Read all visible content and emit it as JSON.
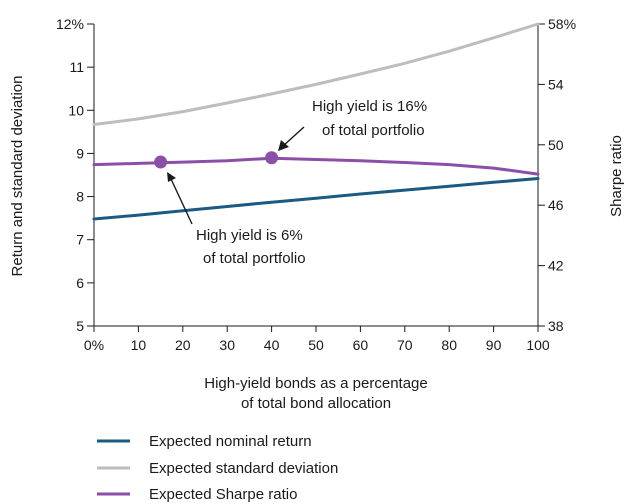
{
  "chart_data": {
    "type": "line",
    "x": [
      0,
      10,
      20,
      30,
      40,
      50,
      60,
      70,
      80,
      90,
      100
    ],
    "x_tick_labels": [
      "0%",
      "10",
      "20",
      "30",
      "40",
      "50",
      "60",
      "70",
      "80",
      "90",
      "100"
    ],
    "xlim": [
      0,
      100
    ],
    "xlabel_lines": [
      "High-yield bonds as a percentage",
      "of total bond allocation"
    ],
    "ylabel_left": "Return and standard deviation",
    "ylim_left": [
      5,
      12
    ],
    "y_left_tick_labels": [
      "5",
      "6",
      "7",
      "8",
      "9",
      "10",
      "11",
      "12%"
    ],
    "ylabel_right": "Sharpe ratio",
    "ylim_right": [
      38,
      58
    ],
    "y_right_tick_labels": [
      "38",
      "42",
      "46",
      "50",
      "54",
      "58%"
    ],
    "grid": false,
    "series": [
      {
        "name": "Expected nominal return",
        "axis": "left",
        "color": "#1b5a83",
        "values": [
          7.48,
          7.57,
          7.67,
          7.77,
          7.87,
          7.96,
          8.06,
          8.15,
          8.24,
          8.33,
          8.42
        ]
      },
      {
        "name": "Expected standard deviation",
        "axis": "left",
        "color": "#bdbdbd",
        "values": [
          9.67,
          9.8,
          9.97,
          10.17,
          10.38,
          10.6,
          10.84,
          11.09,
          11.37,
          11.68,
          12.0
        ]
      },
      {
        "name": "Expected Sharpe ratio",
        "axis": "left",
        "color": "#8c4fa8",
        "values": [
          8.74,
          8.77,
          8.8,
          8.83,
          8.89,
          8.86,
          8.83,
          8.79,
          8.74,
          8.66,
          8.52
        ]
      }
    ],
    "markers": [
      {
        "x": 15,
        "y": 8.8,
        "color": "#8c4fa8"
      },
      {
        "x": 40,
        "y": 8.9,
        "color": "#8c4fa8"
      }
    ],
    "annotations": [
      {
        "lines": [
          "High yield is 16%",
          "of total portfolio"
        ]
      },
      {
        "lines": [
          "High yield is 6%",
          "of total portfolio"
        ]
      }
    ],
    "legend_placement": "bottom-left"
  }
}
